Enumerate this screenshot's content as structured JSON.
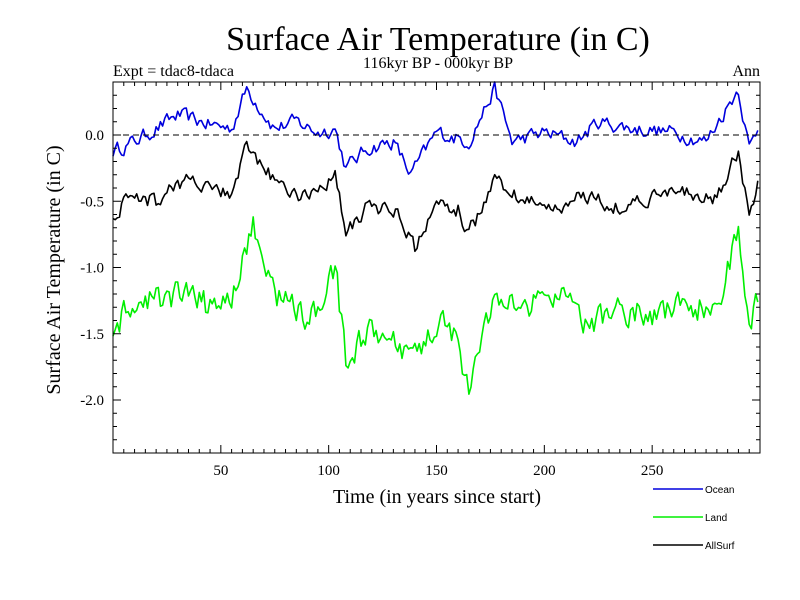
{
  "chart_data": {
    "type": "line",
    "title": "Surface Air Temperature (in C)",
    "subtitle": "116kyr BP - 000kyr BP",
    "experiment_label": "Expt = tdac8-tdaca",
    "season_label": "Ann",
    "xlabel": "Time (in years since start)",
    "ylabel": "Surface Air Temperature (in C)",
    "xlim": [
      0,
      300
    ],
    "ylim": [
      -2.4,
      0.4
    ],
    "x_ticks": [
      50,
      100,
      150,
      200,
      250
    ],
    "x_tick_labels": [
      "50",
      "100",
      "150",
      "200",
      "250"
    ],
    "y_ticks": [
      0.0,
      -0.5,
      -1.0,
      -1.5,
      -2.0
    ],
    "y_tick_labels": [
      "0.0",
      "-0.5",
      "-1.0",
      "-1.5",
      "-2.0"
    ],
    "reference_line": 0.0,
    "series": [
      {
        "name": "Ocean",
        "color": "#0000dd",
        "keypoints": [
          [
            0,
            -0.12
          ],
          [
            10,
            -0.05
          ],
          [
            20,
            0.05
          ],
          [
            30,
            0.15
          ],
          [
            45,
            0.08
          ],
          [
            55,
            0.05
          ],
          [
            62,
            0.35
          ],
          [
            75,
            0.05
          ],
          [
            85,
            0.1
          ],
          [
            95,
            0.02
          ],
          [
            103,
            0.05
          ],
          [
            108,
            -0.25
          ],
          [
            118,
            -0.1
          ],
          [
            130,
            -0.05
          ],
          [
            138,
            -0.3
          ],
          [
            150,
            0.02
          ],
          [
            165,
            -0.05
          ],
          [
            177,
            0.35
          ],
          [
            185,
            -0.05
          ],
          [
            200,
            0.02
          ],
          [
            215,
            -0.05
          ],
          [
            225,
            0.1
          ],
          [
            240,
            0.05
          ],
          [
            260,
            0.02
          ],
          [
            275,
            -0.05
          ],
          [
            290,
            0.35
          ],
          [
            295,
            -0.1
          ],
          [
            299,
            0.05
          ]
        ]
      },
      {
        "name": "Land",
        "color": "#00ee00",
        "keypoints": [
          [
            0,
            -1.45
          ],
          [
            10,
            -1.3
          ],
          [
            20,
            -1.25
          ],
          [
            30,
            -1.2
          ],
          [
            45,
            -1.3
          ],
          [
            55,
            -1.2
          ],
          [
            65,
            -0.7
          ],
          [
            75,
            -1.2
          ],
          [
            85,
            -1.3
          ],
          [
            95,
            -1.4
          ],
          [
            103,
            -1.0
          ],
          [
            108,
            -1.7
          ],
          [
            118,
            -1.5
          ],
          [
            130,
            -1.6
          ],
          [
            140,
            -1.7
          ],
          [
            150,
            -1.4
          ],
          [
            160,
            -1.5
          ],
          [
            165,
            -2.0
          ],
          [
            175,
            -1.3
          ],
          [
            190,
            -1.3
          ],
          [
            205,
            -1.2
          ],
          [
            220,
            -1.45
          ],
          [
            235,
            -1.3
          ],
          [
            250,
            -1.35
          ],
          [
            265,
            -1.3
          ],
          [
            280,
            -1.3
          ],
          [
            290,
            -0.75
          ],
          [
            295,
            -1.45
          ],
          [
            299,
            -1.25
          ]
        ]
      },
      {
        "name": "AllSurf",
        "color": "#000000",
        "keypoints": [
          [
            0,
            -0.6
          ],
          [
            10,
            -0.45
          ],
          [
            20,
            -0.5
          ],
          [
            30,
            -0.35
          ],
          [
            45,
            -0.4
          ],
          [
            55,
            -0.45
          ],
          [
            62,
            -0.1
          ],
          [
            75,
            -0.35
          ],
          [
            85,
            -0.45
          ],
          [
            95,
            -0.4
          ],
          [
            103,
            -0.3
          ],
          [
            108,
            -0.75
          ],
          [
            118,
            -0.55
          ],
          [
            130,
            -0.55
          ],
          [
            140,
            -0.85
          ],
          [
            150,
            -0.55
          ],
          [
            160,
            -0.55
          ],
          [
            165,
            -0.75
          ],
          [
            177,
            -0.35
          ],
          [
            190,
            -0.5
          ],
          [
            205,
            -0.55
          ],
          [
            220,
            -0.45
          ],
          [
            235,
            -0.55
          ],
          [
            250,
            -0.45
          ],
          [
            265,
            -0.45
          ],
          [
            280,
            -0.5
          ],
          [
            290,
            -0.1
          ],
          [
            295,
            -0.6
          ],
          [
            299,
            -0.4
          ]
        ]
      }
    ],
    "legend": [
      {
        "label": "Ocean",
        "color": "#0000dd"
      },
      {
        "label": "Land",
        "color": "#00ee00"
      },
      {
        "label": "AllSurf",
        "color": "#000000"
      }
    ]
  }
}
